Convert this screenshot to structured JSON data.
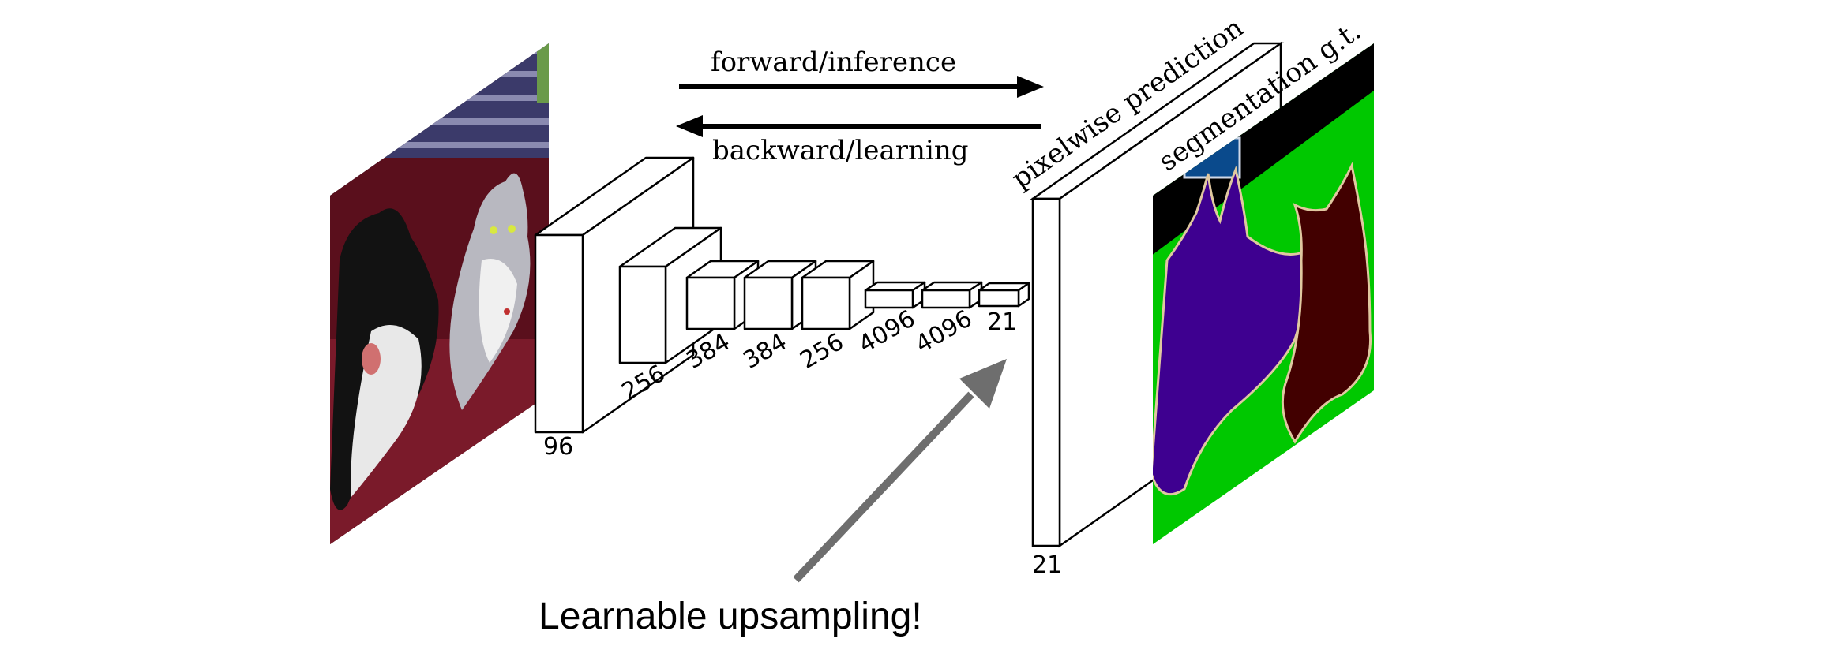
{
  "arrows": {
    "forward_label": "forward/inference",
    "backward_label": "backward/learning"
  },
  "layers": [
    {
      "channels": "96"
    },
    {
      "channels": "256"
    },
    {
      "channels": "384"
    },
    {
      "channels": "384"
    },
    {
      "channels": "256"
    },
    {
      "channels": "4096"
    },
    {
      "channels": "4096"
    },
    {
      "channels": "21"
    }
  ],
  "prediction": {
    "label": "pixelwise prediction",
    "channels": "21"
  },
  "ground_truth": {
    "label": "segmentation g.t."
  },
  "caption": "Learnable upsampling!",
  "colors": {
    "line": "#000000",
    "gray_arrow": "#6e6e6e",
    "gt_background": "#00c800",
    "gt_void": "#000000",
    "gt_dog": "#3e0090",
    "gt_cat": "#420000",
    "gt_blue": "#0a4a8c",
    "photo_sofa": "#5a0f1c"
  }
}
